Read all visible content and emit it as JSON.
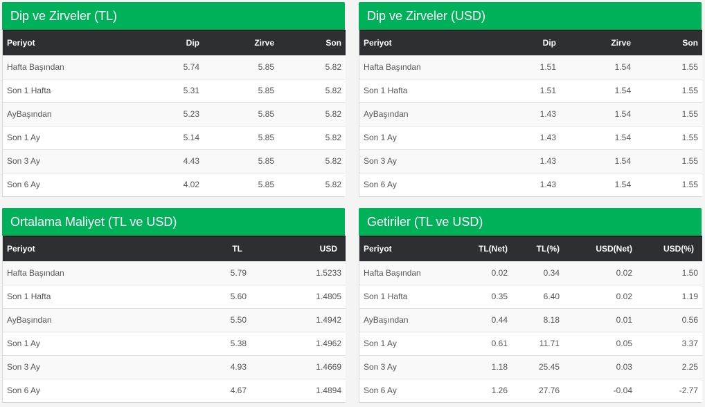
{
  "panels": {
    "tl": {
      "title": "Dip ve Zirveler (TL)",
      "headers": [
        "Periyot",
        "Dip",
        "Zirve",
        "Son"
      ],
      "rows": [
        [
          "Hafta Başından",
          "5.74",
          "5.85",
          "5.82"
        ],
        [
          "Son 1 Hafta",
          "5.31",
          "5.85",
          "5.82"
        ],
        [
          "AyBaşından",
          "5.23",
          "5.85",
          "5.82"
        ],
        [
          "Son 1 Ay",
          "5.14",
          "5.85",
          "5.82"
        ],
        [
          "Son 3 Ay",
          "4.43",
          "5.85",
          "5.82"
        ],
        [
          "Son 6 Ay",
          "4.02",
          "5.85",
          "5.82"
        ]
      ]
    },
    "usd": {
      "title": "Dip ve Zirveler (USD)",
      "headers": [
        "Periyot",
        "Dip",
        "Zirve",
        "Son"
      ],
      "rows": [
        [
          "Hafta Başından",
          "1.51",
          "1.54",
          "1.55"
        ],
        [
          "Son 1 Hafta",
          "1.51",
          "1.54",
          "1.55"
        ],
        [
          "AyBaşından",
          "1.43",
          "1.54",
          "1.55"
        ],
        [
          "Son 1 Ay",
          "1.43",
          "1.54",
          "1.55"
        ],
        [
          "Son 3 Ay",
          "1.43",
          "1.54",
          "1.55"
        ],
        [
          "Son 6 Ay",
          "1.43",
          "1.54",
          "1.55"
        ]
      ]
    },
    "cost": {
      "title": "Ortalama Maliyet (TL ve USD)",
      "headers": [
        "Periyot",
        "TL",
        "USD"
      ],
      "rows": [
        [
          "Hafta Başından",
          "5.79",
          "1.5233"
        ],
        [
          "Son 1 Hafta",
          "5.60",
          "1.4805"
        ],
        [
          "AyBaşından",
          "5.50",
          "1.4942"
        ],
        [
          "Son 1 Ay",
          "5.38",
          "1.4962"
        ],
        [
          "Son 3 Ay",
          "4.93",
          "1.4669"
        ],
        [
          "Son 6 Ay",
          "4.67",
          "1.4894"
        ]
      ]
    },
    "returns": {
      "title": "Getiriler (TL ve USD)",
      "headers": [
        "Periyot",
        "TL(Net)",
        "TL(%)",
        "USD(Net)",
        "USD(%)"
      ],
      "rows": [
        [
          "Hafta Başından",
          "0.02",
          "0.34",
          "0.02",
          "1.50"
        ],
        [
          "Son 1 Hafta",
          "0.35",
          "6.40",
          "0.02",
          "1.19"
        ],
        [
          "AyBaşından",
          "0.44",
          "8.18",
          "0.01",
          "0.56"
        ],
        [
          "Son 1 Ay",
          "0.61",
          "11.71",
          "0.05",
          "3.37"
        ],
        [
          "Son 3 Ay",
          "1.18",
          "25.45",
          "0.03",
          "2.25"
        ],
        [
          "Son 6 Ay",
          "1.26",
          "27.76",
          "-0.04",
          "-2.77"
        ]
      ]
    }
  },
  "colors": {
    "header_green": "#00b159",
    "table_header_dark": "#2d2f33"
  }
}
